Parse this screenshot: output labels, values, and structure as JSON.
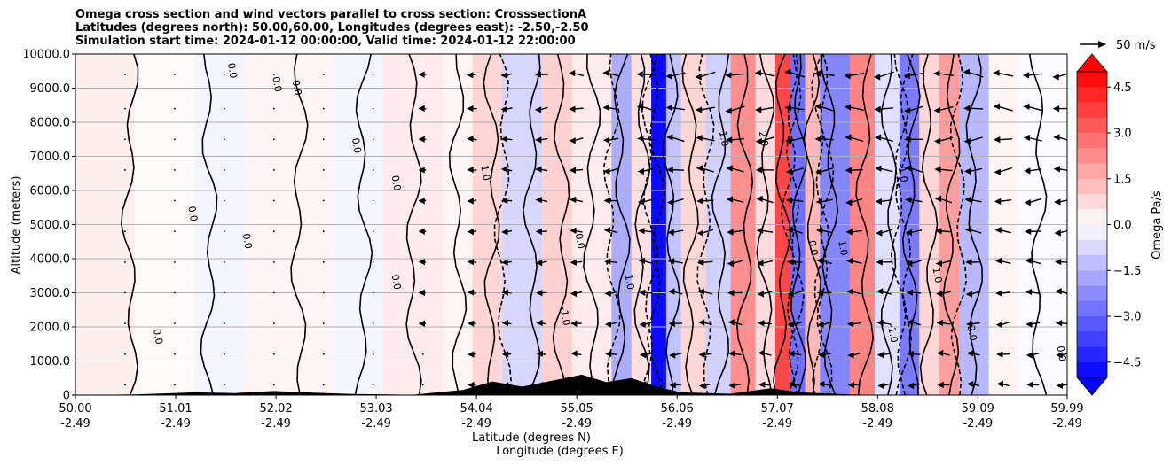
{
  "chart_data": {
    "type": "heatmap",
    "title_lines": [
      "Omega cross section and wind vectors parallel to cross section: CrosssectionA",
      "Latitudes (degrees north): 50.00,60.00, Longitudes (degrees east): -2.50,-2.50",
      "Simulation start time: 2024-01-12 00:00:00, Valid time: 2024-01-12 22:00:00"
    ],
    "ylabel": "Altitude (meters)",
    "xlabel_lat": "Latitude (degrees N)",
    "xlabel_lon": "Longitude (degrees E)",
    "xlim": [
      50.0,
      59.99
    ],
    "ylim": [
      0,
      10000
    ],
    "grid": "horizontal",
    "y_ticks": [
      0,
      1000,
      2000,
      3000,
      4000,
      5000,
      6000,
      7000,
      8000,
      9000,
      10000
    ],
    "y_tick_labels": [
      "0",
      "1000.0",
      "2000.0",
      "3000.0",
      "4000.0",
      "5000.0",
      "6000.0",
      "7000.0",
      "8000.0",
      "9000.0",
      "10000.0"
    ],
    "x_ticks": [
      50.0,
      51.01,
      52.02,
      53.03,
      54.04,
      55.05,
      56.06,
      57.07,
      58.08,
      59.09,
      59.99
    ],
    "x_tick_lat_labels": [
      "50.00",
      "51.01",
      "52.02",
      "53.03",
      "54.04",
      "55.05",
      "56.06",
      "57.07",
      "58.08",
      "59.09",
      "59.99"
    ],
    "x_tick_lon_labels": [
      "-2.49",
      "-2.49",
      "-2.49",
      "-2.49",
      "-2.49",
      "-2.49",
      "-2.49",
      "-2.49",
      "-2.49",
      "-2.49",
      "-2.49"
    ],
    "colorbar": {
      "label": "Omega Pa/s",
      "range": [
        -5.0,
        5.0
      ],
      "extend": "both",
      "ticks": [
        4.5,
        3.0,
        1.5,
        0.0,
        -1.5,
        -3.0,
        -4.5
      ],
      "tick_labels": [
        "4.5",
        "3.0",
        "1.5",
        "0.0",
        "−1.5",
        "−3.0",
        "−4.5"
      ],
      "colors": {
        "max": "#ff0000",
        "zero": "#ffffff",
        "min": "#0000ff"
      }
    },
    "quiver_key": {
      "label": "50 m/s",
      "speed": 50
    },
    "omega_bands": [
      {
        "lat": 50.0,
        "value": 0.3
      },
      {
        "lat": 50.6,
        "value": 0.1
      },
      {
        "lat": 51.2,
        "value": -0.2
      },
      {
        "lat": 51.7,
        "value": 0.2
      },
      {
        "lat": 52.6,
        "value": -0.2
      },
      {
        "lat": 53.1,
        "value": 0.4
      },
      {
        "lat": 53.7,
        "value": 0.2
      },
      {
        "lat": 54.0,
        "value": 0.8
      },
      {
        "lat": 54.3,
        "value": -0.8
      },
      {
        "lat": 54.7,
        "value": 0.9
      },
      {
        "lat": 55.0,
        "value": 0.4
      },
      {
        "lat": 55.4,
        "value": -1.6
      },
      {
        "lat": 55.6,
        "value": 0.6
      },
      {
        "lat": 55.8,
        "value": -4.8
      },
      {
        "lat": 55.95,
        "value": -1.2
      },
      {
        "lat": 56.1,
        "value": 0.8
      },
      {
        "lat": 56.35,
        "value": -0.9
      },
      {
        "lat": 56.6,
        "value": 2.2
      },
      {
        "lat": 56.85,
        "value": 0.7
      },
      {
        "lat": 57.05,
        "value": 3.6
      },
      {
        "lat": 57.2,
        "value": -2.8
      },
      {
        "lat": 57.35,
        "value": 1.4
      },
      {
        "lat": 57.5,
        "value": -2.4
      },
      {
        "lat": 57.8,
        "value": 2.4
      },
      {
        "lat": 58.05,
        "value": -0.6
      },
      {
        "lat": 58.3,
        "value": -2.6
      },
      {
        "lat": 58.5,
        "value": 0.8
      },
      {
        "lat": 58.7,
        "value": 1.9
      },
      {
        "lat": 58.9,
        "value": -1.4
      },
      {
        "lat": 59.2,
        "value": 0.2
      },
      {
        "lat": 59.5,
        "value": -0.1
      },
      {
        "lat": 59.99,
        "value": 0.2
      }
    ],
    "zero_contour_lats": [
      50.55,
      51.35,
      52.25,
      52.9,
      53.4,
      53.85,
      54.2,
      54.6,
      54.9,
      55.2,
      55.5,
      55.7,
      56.0,
      56.2,
      56.5,
      56.75,
      56.95,
      57.12,
      57.28,
      57.42,
      57.6,
      57.95,
      58.2,
      58.42,
      58.6,
      58.82,
      59.05,
      59.7
    ],
    "dashed_contour_lats": [
      54.3,
      55.4,
      55.78,
      55.85,
      56.35,
      57.2,
      57.25,
      57.5,
      57.55,
      58.3,
      58.35,
      58.9
    ],
    "contour_labels": [
      {
        "text": "0.0",
        "lat": 50.8,
        "alt": 1700
      },
      {
        "text": "0.0",
        "lat": 51.15,
        "alt": 5300
      },
      {
        "text": "0.0",
        "lat": 51.55,
        "alt": 9500
      },
      {
        "text": "0.0",
        "lat": 51.7,
        "alt": 4500
      },
      {
        "text": "0.0",
        "lat": 52.0,
        "alt": 9100
      },
      {
        "text": "0.0",
        "lat": 52.2,
        "alt": 9000
      },
      {
        "text": "0.0",
        "lat": 52.8,
        "alt": 7300
      },
      {
        "text": "0.0",
        "lat": 53.2,
        "alt": 3300
      },
      {
        "text": "0.0",
        "lat": 53.2,
        "alt": 6200
      },
      {
        "text": "1.0",
        "lat": 54.1,
        "alt": 6500
      },
      {
        "text": "-1.0",
        "lat": 54.9,
        "alt": 2300
      },
      {
        "text": "0.0",
        "lat": 55.05,
        "alt": 4500
      },
      {
        "text": "1.0",
        "lat": 55.55,
        "alt": 3300
      },
      {
        "text": "1.0",
        "lat": 56.5,
        "alt": 7500
      },
      {
        "text": "2.0",
        "lat": 56.9,
        "alt": 7500
      },
      {
        "text": "0.0",
        "lat": 57.4,
        "alt": 4300
      },
      {
        "text": "1.0",
        "lat": 57.7,
        "alt": 4300
      },
      {
        "text": "-1.0",
        "lat": 58.3,
        "alt": 6500
      },
      {
        "text": "-1.0",
        "lat": 58.2,
        "alt": 1800
      },
      {
        "text": "1.0",
        "lat": 58.65,
        "alt": 3500
      },
      {
        "text": "2.0",
        "lat": 59.0,
        "alt": 1800
      },
      {
        "text": "0.0",
        "lat": 59.9,
        "alt": 1200
      }
    ],
    "wind_rows_m": [
      300,
      1200,
      2100,
      3000,
      3900,
      4800,
      5700,
      6600,
      7500,
      8400,
      9400
    ],
    "wind_cols_lat": [
      50.5,
      51.0,
      51.5,
      52.0,
      52.5,
      53.0,
      53.5,
      54.0,
      54.35,
      54.7,
      55.05,
      55.4,
      55.75,
      56.05,
      56.35,
      56.65,
      56.95,
      57.25,
      57.55,
      57.85,
      58.15,
      58.45,
      58.75,
      59.05,
      59.35,
      59.65,
      59.95
    ],
    "terrain": [
      {
        "lat": 50.0,
        "alt": 0
      },
      {
        "lat": 50.6,
        "alt": 20
      },
      {
        "lat": 51.2,
        "alt": 80
      },
      {
        "lat": 51.6,
        "alt": 60
      },
      {
        "lat": 52.0,
        "alt": 120
      },
      {
        "lat": 52.4,
        "alt": 70
      },
      {
        "lat": 52.8,
        "alt": 30
      },
      {
        "lat": 53.4,
        "alt": 10
      },
      {
        "lat": 53.9,
        "alt": 150
      },
      {
        "lat": 54.2,
        "alt": 400
      },
      {
        "lat": 54.5,
        "alt": 250
      },
      {
        "lat": 54.8,
        "alt": 420
      },
      {
        "lat": 55.1,
        "alt": 600
      },
      {
        "lat": 55.35,
        "alt": 380
      },
      {
        "lat": 55.6,
        "alt": 500
      },
      {
        "lat": 55.85,
        "alt": 250
      },
      {
        "lat": 56.1,
        "alt": 80
      },
      {
        "lat": 56.6,
        "alt": 40
      },
      {
        "lat": 57.0,
        "alt": 200
      },
      {
        "lat": 57.3,
        "alt": 80
      },
      {
        "lat": 57.8,
        "alt": 20
      },
      {
        "lat": 58.3,
        "alt": 0
      },
      {
        "lat": 59.99,
        "alt": 0
      }
    ]
  }
}
